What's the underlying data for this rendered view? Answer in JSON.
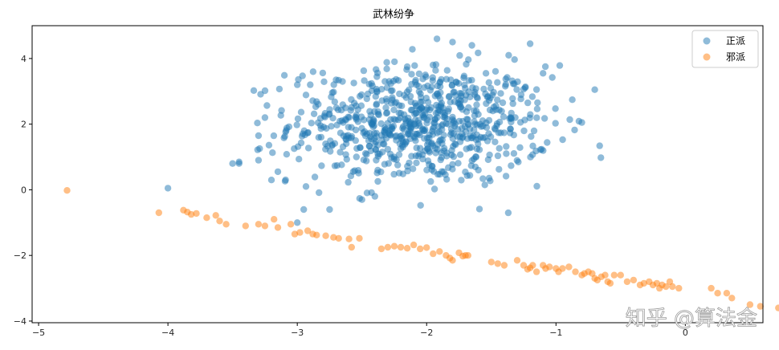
{
  "chart_data": {
    "type": "scatter",
    "title": "武林纷争",
    "xlabel": "",
    "ylabel": "",
    "xlim": [
      -5.05,
      0.6
    ],
    "ylim": [
      -4.05,
      5.0
    ],
    "xticks": [
      -5,
      -4,
      -3,
      -2,
      -1,
      0
    ],
    "yticks": [
      -4,
      -2,
      0,
      2,
      4
    ],
    "xtick_labels": [
      "−5",
      "−4",
      "−3",
      "−2",
      "−1",
      "0"
    ],
    "ytick_labels": [
      "−4",
      "−2",
      "0",
      "2",
      "4"
    ],
    "grid": false,
    "legend_position": "top-right",
    "series": [
      {
        "name": "正派",
        "color": "#1f77b4",
        "cluster": {
          "count": 760,
          "mean": [
            -2.05,
            2.0
          ],
          "std": [
            0.5,
            0.9
          ]
        },
        "points": [
          [
            -4.0,
            0.05
          ],
          [
            -3.45,
            0.8
          ],
          [
            -3.5,
            0.8
          ],
          [
            -3.3,
            0.9
          ],
          [
            -3.2,
            0.3
          ],
          [
            -3.0,
            -1.0
          ],
          [
            -2.95,
            -0.6
          ],
          [
            -2.75,
            -0.6
          ],
          [
            -0.7,
            3.05
          ],
          [
            -0.8,
            2.05
          ],
          [
            -1.1,
            3.55
          ],
          [
            -1.2,
            4.45
          ],
          [
            -1.92,
            4.6
          ],
          [
            -1.65,
            4.4
          ],
          [
            -1.8,
            4.5
          ],
          [
            -2.15,
            3.75
          ],
          [
            -2.7,
            3.35
          ],
          [
            -3.25,
            2.2
          ],
          [
            -3.3,
            1.65
          ],
          [
            -3.45,
            0.85
          ],
          [
            -2.4,
            -0.2
          ],
          [
            -2.5,
            -0.3
          ],
          [
            -1.55,
            0.15
          ],
          [
            -1.6,
            0.6
          ],
          [
            -3.15,
            0.55
          ],
          [
            -3.0,
            3.2
          ],
          [
            -2.9,
            3.2
          ]
        ]
      },
      {
        "name": "邪派",
        "color": "#ff7f0e",
        "points": [
          [
            -4.78,
            -0.02
          ],
          [
            -4.07,
            -0.7
          ],
          [
            -3.88,
            -0.62
          ],
          [
            -3.85,
            -0.68
          ],
          [
            -3.82,
            -0.75
          ],
          [
            -3.78,
            -0.72
          ],
          [
            -3.7,
            -0.85
          ],
          [
            -3.63,
            -0.78
          ],
          [
            -3.6,
            -0.95
          ],
          [
            -3.55,
            -1.05
          ],
          [
            -3.4,
            -1.1
          ],
          [
            -3.3,
            -1.05
          ],
          [
            -3.25,
            -1.1
          ],
          [
            -3.18,
            -0.9
          ],
          [
            -3.15,
            -1.15
          ],
          [
            -3.05,
            -1.05
          ],
          [
            -3.02,
            -1.35
          ],
          [
            -2.98,
            -1.3
          ],
          [
            -2.92,
            -1.25
          ],
          [
            -2.88,
            -1.35
          ],
          [
            -2.85,
            -1.38
          ],
          [
            -2.78,
            -1.4
          ],
          [
            -2.72,
            -1.45
          ],
          [
            -2.68,
            -1.48
          ],
          [
            -2.6,
            -1.5
          ],
          [
            -2.58,
            -1.75
          ],
          [
            -2.52,
            -1.48
          ],
          [
            -2.35,
            -1.8
          ],
          [
            -2.3,
            -1.75
          ],
          [
            -2.25,
            -1.72
          ],
          [
            -2.2,
            -1.75
          ],
          [
            -2.15,
            -1.78
          ],
          [
            -2.1,
            -1.68
          ],
          [
            -2.05,
            -1.8
          ],
          [
            -2.0,
            -1.76
          ],
          [
            -1.95,
            -1.95
          ],
          [
            -1.9,
            -1.88
          ],
          [
            -1.85,
            -2.0
          ],
          [
            -1.82,
            -2.08
          ],
          [
            -1.8,
            -2.15
          ],
          [
            -1.75,
            -1.92
          ],
          [
            -1.72,
            -2.02
          ],
          [
            -1.7,
            -2.0
          ],
          [
            -1.68,
            -2.0
          ],
          [
            -1.5,
            -2.2
          ],
          [
            -1.45,
            -2.25
          ],
          [
            -1.4,
            -2.3
          ],
          [
            -1.3,
            -2.15
          ],
          [
            -1.25,
            -2.3
          ],
          [
            -1.22,
            -2.42
          ],
          [
            -1.2,
            -2.38
          ],
          [
            -1.18,
            -2.3
          ],
          [
            -1.15,
            -2.5
          ],
          [
            -1.1,
            -2.3
          ],
          [
            -1.08,
            -2.4
          ],
          [
            -1.05,
            -2.35
          ],
          [
            -1.0,
            -2.4
          ],
          [
            -0.98,
            -2.5
          ],
          [
            -0.95,
            -2.4
          ],
          [
            -0.9,
            -2.35
          ],
          [
            -0.85,
            -2.5
          ],
          [
            -0.8,
            -2.6
          ],
          [
            -0.78,
            -2.55
          ],
          [
            -0.75,
            -2.5
          ],
          [
            -0.7,
            -2.7
          ],
          [
            -0.68,
            -2.75
          ],
          [
            -0.65,
            -2.65
          ],
          [
            -0.6,
            -2.8
          ],
          [
            -0.55,
            -2.6
          ],
          [
            -0.45,
            -2.8
          ],
          [
            -0.32,
            -2.85
          ],
          [
            -0.28,
            -2.8
          ],
          [
            -0.25,
            -2.9
          ],
          [
            -0.22,
            -2.85
          ],
          [
            -0.2,
            -3.0
          ],
          [
            -0.18,
            -2.9
          ],
          [
            -0.15,
            -2.95
          ],
          [
            -0.12,
            -2.8
          ],
          [
            -0.1,
            -2.95
          ],
          [
            -0.05,
            -3.0
          ],
          [
            0.2,
            -3.0
          ],
          [
            0.25,
            -3.15
          ],
          [
            0.32,
            -3.15
          ],
          [
            0.36,
            -3.3
          ],
          [
            0.5,
            -3.5
          ],
          [
            0.58,
            -3.55
          ],
          [
            0.72,
            -3.6
          ],
          [
            0.78,
            -3.65
          ],
          [
            -0.35,
            -2.9
          ],
          [
            -0.4,
            -2.75
          ],
          [
            -0.5,
            -2.6
          ],
          [
            -0.58,
            -2.85
          ],
          [
            -0.62,
            -2.6
          ],
          [
            -0.72,
            -2.55
          ]
        ]
      }
    ]
  },
  "watermark": "知乎 @算法金"
}
